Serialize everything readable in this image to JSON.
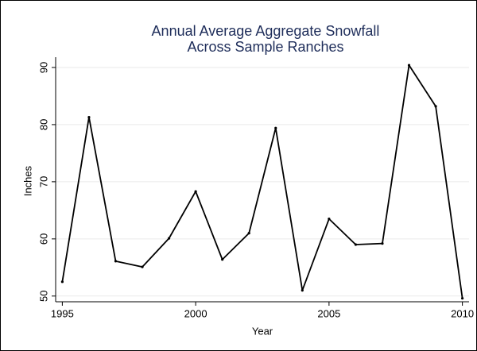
{
  "chart_data": {
    "type": "line",
    "title": "Annual Average Aggregate Snowfall",
    "subtitle": "Across Sample Ranches",
    "x_label": "Year",
    "y_label": "Inches",
    "x": [
      1995,
      1996,
      1997,
      1998,
      1999,
      2000,
      2001,
      2002,
      2003,
      2004,
      2005,
      2006,
      2007,
      2008,
      2009,
      2010
    ],
    "series": [
      {
        "name": "Inches",
        "color": "#000000",
        "values": [
          52.5,
          81.3,
          56.1,
          55.1,
          60.1,
          68.3,
          56.4,
          61.0,
          79.4,
          51.0,
          63.5,
          59.0,
          59.2,
          90.4,
          83.2,
          49.6
        ]
      }
    ],
    "xlim": [
      1994.75,
      2010.25
    ],
    "xticks": [
      1995,
      2000,
      2005,
      2010
    ],
    "ylim": [
      49,
      91.8
    ],
    "yticks": [
      50,
      60,
      70,
      80,
      90
    ],
    "grid": true
  }
}
